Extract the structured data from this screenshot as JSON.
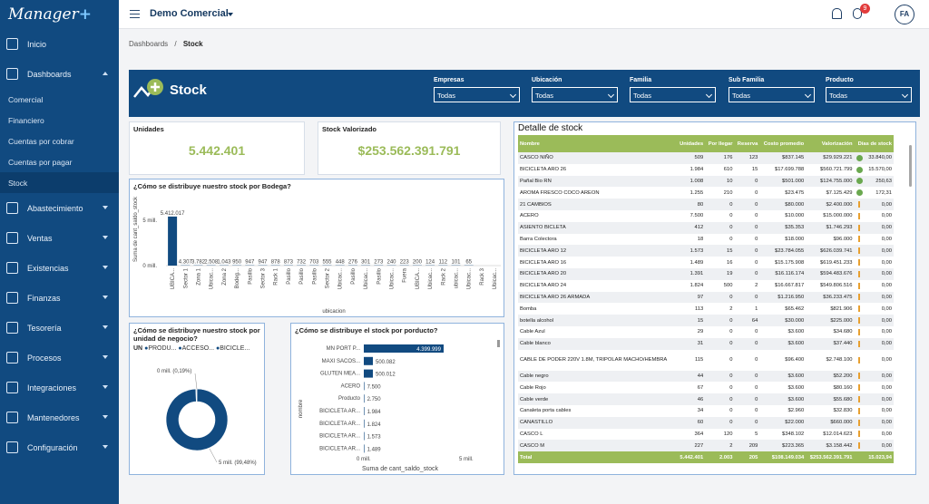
{
  "app": {
    "logo": "Manager",
    "logo_plus": "+",
    "project": "Demo Comercial",
    "badge": "9",
    "avatar": "FA"
  },
  "nav": [
    {
      "label": "Inicio",
      "icon": "home-icon"
    },
    {
      "label": "Dashboards",
      "icon": "dashboard-icon",
      "open": true
    },
    {
      "label": "Abastecimiento",
      "icon": "truck-icon"
    },
    {
      "label": "Ventas",
      "icon": "chart-line-icon"
    },
    {
      "label": "Existencias",
      "icon": "check-box-icon"
    },
    {
      "label": "Finanzas",
      "icon": "dollar-icon"
    },
    {
      "label": "Tesorería",
      "icon": "bank-icon"
    },
    {
      "label": "Procesos",
      "icon": "sliders-icon"
    },
    {
      "label": "Integraciones",
      "icon": "grid-icon"
    },
    {
      "label": "Mantenedores",
      "icon": "users-icon"
    },
    {
      "label": "Configuración",
      "icon": "gear-icon"
    }
  ],
  "subnav": [
    "Comercial",
    "Financiero",
    "Cuentas por cobrar",
    "Cuentas por pagar",
    "Stock"
  ],
  "breadcrumb": {
    "root": "Dashboards",
    "sep": "/",
    "current": "Stock"
  },
  "banner": {
    "title": "Stock"
  },
  "filters": [
    {
      "label": "Empresas",
      "value": "Todas"
    },
    {
      "label": "Ubicación",
      "value": "Todas"
    },
    {
      "label": "Familia",
      "value": "Todas"
    },
    {
      "label": "Sub Familia",
      "value": "Todas"
    },
    {
      "label": "Producto",
      "value": "Todas"
    }
  ],
  "kpis": {
    "unidades_label": "Unidades",
    "unidades": "5.442.401",
    "valor_label": "Stock Valorizado",
    "valor": "$253.562.391.791"
  },
  "bodega": {
    "title": "¿Cómo se distribuye nuestro stock por Bodega?",
    "ylabel": "Suma de cant_saldo_stock",
    "xlabel": "ubicacion",
    "ticks": [
      "5 mill.",
      "0 mill."
    ]
  },
  "unidad": {
    "title": "¿Cómo se distribuye nuestro stock por unidad de negocio?",
    "legend_title": "UN",
    "legend": [
      "PRODU...",
      "ACCESO...",
      "BICICLE..."
    ],
    "label_top": "0 mill. (0,19%)",
    "label_bottom": "5 mill. (99,48%)"
  },
  "producto": {
    "title": "¿Cómo se distribuye el stock por porducto?",
    "ylabel": "nombre",
    "xlabel": "Suma de cant_saldo_stock",
    "ticks": [
      "0 mill.",
      "5 mill."
    ]
  },
  "chart_data": [
    {
      "type": "bar",
      "title": "¿Cómo se distribuye nuestro stock por Bodega?",
      "xlabel": "ubicacion",
      "ylabel": "Suma de cant_saldo_stock",
      "categories": [
        "UBICA...",
        "Sector 1",
        "Zona 1",
        "Ubicac...",
        "Zona 2",
        "Bodeg...",
        "Pasillo",
        "Sector 3",
        "Rack 1",
        "Pasillo",
        "Pasillo",
        "Pasillo",
        "Sector 2",
        "Ubicac...",
        "Pasillo",
        "Ubicac...",
        "Pasillo",
        "Ubicac...",
        "Fuera",
        "UBICA...",
        "Ubicac...",
        "Rack 2",
        "ubicac...",
        "Ubicac...",
        "Rack 3",
        "Ubicac..."
      ],
      "values": [
        5412017,
        4307,
        3782,
        2508,
        1043,
        950,
        947,
        947,
        878,
        873,
        732,
        703,
        555,
        448,
        276,
        301,
        273,
        240,
        223,
        200,
        124,
        112,
        101,
        65,
        null,
        null
      ],
      "labels": [
        "5.412.017",
        "4.307",
        "3.782",
        "2.508",
        "1.043",
        "950",
        "947",
        "947",
        "878",
        "873",
        "732",
        "703",
        "555",
        "448",
        "276",
        "301",
        "273",
        "240",
        "223",
        "200",
        "124",
        "112",
        "101",
        "65"
      ],
      "ylim": [
        0,
        6000000
      ]
    },
    {
      "type": "pie",
      "title": "¿Cómo se distribuye nuestro stock por unidad de negocio?",
      "categories": [
        "PRODU...",
        "ACCESO...",
        "BICICLE..."
      ],
      "values": [
        99.48,
        0.19,
        0.33
      ]
    },
    {
      "type": "bar",
      "title": "¿Cómo se distribuye el stock por porducto?",
      "orientation": "horizontal",
      "xlabel": "Suma de cant_saldo_stock",
      "ylabel": "nombre",
      "categories": [
        "MN PORT P...",
        "MAXI SACOS...",
        "GLUTEN MEA...",
        "ACERO",
        "Producto",
        "BICICLETA AR...",
        "BICICLETA AR...",
        "BICICLETA AR...",
        "BICICLETA AR..."
      ],
      "values": [
        4399999,
        500082,
        500012,
        7500,
        2750,
        1984,
        1824,
        1573,
        1489
      ],
      "labels": [
        "4.399.999",
        "500.082",
        "500.012",
        "7.500",
        "2.750",
        "1.984",
        "1.824",
        "1.573",
        "1.489"
      ],
      "xlim": [
        0,
        5000000
      ]
    }
  ],
  "detalle": {
    "title": "Detalle de stock",
    "headers": [
      "Nombre",
      "Unidades",
      "Por llegar",
      "Reserva",
      "Costo promedio",
      "Valorización",
      "Días de stock"
    ],
    "rows": [
      [
        "CASCO NIÑO",
        "509",
        "176",
        "123",
        "$837.145",
        "$29.929.221",
        "dot",
        "33.840,00"
      ],
      [
        "BICICLETA ARO 26",
        "1.984",
        "610",
        "15",
        "$17.699.788",
        "$560.721.799",
        "dot",
        "15.570,00"
      ],
      [
        "Pañal Bio RN",
        "1.008",
        "10",
        "0",
        "$501.000",
        "$124.755.000",
        "dot",
        "250,63"
      ],
      [
        "AROMA FRESCO COCO AREON",
        "1.255",
        "210",
        "0",
        "$23.475",
        "$7.125.429",
        "dot",
        "172,31"
      ],
      [
        "21 CAMBIOS",
        "80",
        "0",
        "0",
        "$80.000",
        "$2.400.000",
        "warn",
        "0,00"
      ],
      [
        "ACERO",
        "7.500",
        "0",
        "0",
        "$10.000",
        "$15.000.000",
        "warn",
        "0,00"
      ],
      [
        "ASIENTO BICLETA",
        "412",
        "0",
        "0",
        "$35.353",
        "$1.746.293",
        "warn",
        "0,00"
      ],
      [
        "Barra Colectora",
        "18",
        "0",
        "0",
        "$18.000",
        "$96.000",
        "warn",
        "0,00"
      ],
      [
        "BICICLETA ARO 12",
        "1.573",
        "15",
        "0",
        "$23.784.055",
        "$626.039.741",
        "warn",
        "0,00"
      ],
      [
        "BICICLETA ARO 16",
        "1.489",
        "16",
        "0",
        "$15.175.908",
        "$619.451.233",
        "warn",
        "0,00"
      ],
      [
        "BICICLETA ARO 20",
        "1.391",
        "19",
        "0",
        "$16.116.174",
        "$594.483.676",
        "warn",
        "0,00"
      ],
      [
        "BICICLETA ARO 24",
        "1.824",
        "500",
        "2",
        "$16.667.817",
        "$549.806.516",
        "warn",
        "0,00"
      ],
      [
        "BICICLETA ARO 26 ARMADA",
        "97",
        "0",
        "0",
        "$1.216.950",
        "$36.233.475",
        "warn",
        "0,00"
      ],
      [
        "Bomba",
        "113",
        "2",
        "1",
        "$65.462",
        "$821.906",
        "warn",
        "0,00"
      ],
      [
        "botella alcohol",
        "15",
        "0",
        "64",
        "$30.000",
        "$225.000",
        "warn",
        "0,00"
      ],
      [
        "Cable Azul",
        "29",
        "0",
        "0",
        "$3.600",
        "$34.680",
        "warn",
        "0,00"
      ],
      [
        "Cable blanco",
        "31",
        "0",
        "0",
        "$3.600",
        "$37.440",
        "warn",
        "0,00"
      ],
      [
        "CABLE DE PODER 220V 1.8M, TRIPOLAR MACHO/HEMBRA",
        "115",
        "0",
        "0",
        "$96.400",
        "$2.748.100",
        "warn",
        "0,00"
      ],
      [
        "Cable negro",
        "44",
        "0",
        "0",
        "$3.600",
        "$52.200",
        "warn",
        "0,00"
      ],
      [
        "Cable Rojo",
        "67",
        "0",
        "0",
        "$3.600",
        "$80.160",
        "warn",
        "0,00"
      ],
      [
        "Cable verde",
        "46",
        "0",
        "0",
        "$3.600",
        "$55.680",
        "warn",
        "0,00"
      ],
      [
        "Canaleta porta cables",
        "34",
        "0",
        "0",
        "$2.960",
        "$32.830",
        "warn",
        "0,00"
      ],
      [
        "CANASTILLO",
        "60",
        "0",
        "0",
        "$22.000",
        "$660.000",
        "warn",
        "0,00"
      ],
      [
        "CASCO L",
        "364",
        "120",
        "5",
        "$348.102",
        "$12.014.623",
        "warn",
        "0,00"
      ],
      [
        "CASCO M",
        "227",
        "2",
        "209",
        "$223.365",
        "$3.158.442",
        "warn",
        "0,00"
      ]
    ],
    "total": [
      "Total",
      "5.442.401",
      "2.003",
      "205",
      "$108.149.034",
      "$253.562.391.791",
      "",
      "15.023,94"
    ]
  }
}
